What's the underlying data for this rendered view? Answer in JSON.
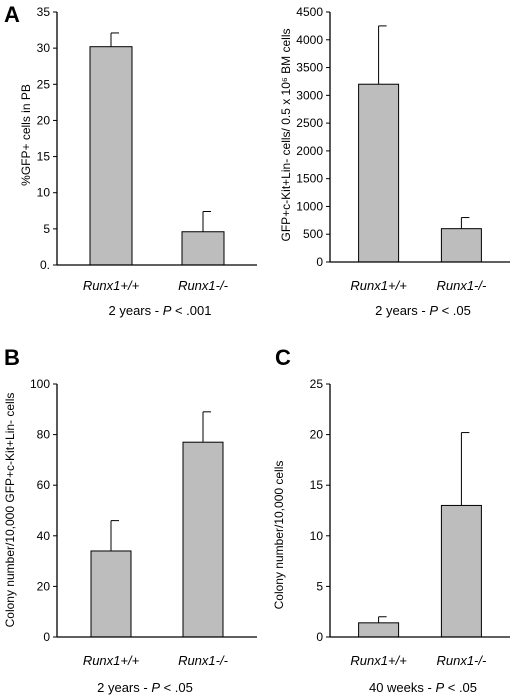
{
  "chart_data": [
    {
      "type": "bar",
      "panel_label": "A",
      "categories": [
        "Runx1+/+",
        "Runx1-/-"
      ],
      "values": [
        30.2,
        4.6
      ],
      "errors": [
        1.9,
        2.8
      ],
      "ylabel": "%GFP+ cells in PB",
      "ylim": [
        0,
        35
      ],
      "yticks": [
        "0.",
        "5",
        "10",
        "15",
        "20",
        "25",
        "30",
        "35"
      ],
      "caption": "2 years  - P < .001",
      "bar_color": "#bdbdbd"
    },
    {
      "type": "bar",
      "panel_label": "",
      "categories": [
        "Runx1+/+",
        "Runx1-/-"
      ],
      "values": [
        3200,
        600
      ],
      "errors": [
        1050,
        200
      ],
      "ylabel": "GFP+c-Kit+Lin- cells/ 0.5 x 10⁶ BM cells",
      "ylim": [
        0,
        4500
      ],
      "yticks": [
        "0",
        "500",
        "1000",
        "1500",
        "2000",
        "2500",
        "3000",
        "3500",
        "4000",
        "4500"
      ],
      "caption": "2 years  - P < .05",
      "bar_color": "#bdbdbd"
    },
    {
      "type": "bar",
      "panel_label": "B",
      "categories": [
        "Runx1+/+",
        "Runx1-/-"
      ],
      "values": [
        34,
        77
      ],
      "errors": [
        12,
        12
      ],
      "ylabel": "Colony number/10,000 GFP+c-Kit+Lin- cells",
      "ylim": [
        0,
        100
      ],
      "yticks": [
        "0",
        "20",
        "40",
        "60",
        "80",
        "100"
      ],
      "caption": "2 years  - P < .05",
      "bar_color": "#bdbdbd"
    },
    {
      "type": "bar",
      "panel_label": "C",
      "categories": [
        "Runx1+/+",
        "Runx1-/-"
      ],
      "values": [
        1.4,
        13
      ],
      "errors": [
        0.6,
        7.2
      ],
      "ylabel": "Colony number/10,000 cells",
      "ylim": [
        0,
        25
      ],
      "yticks": [
        "0",
        "5",
        "10",
        "15",
        "20",
        "25"
      ],
      "caption": "40 weeks  - P < .05",
      "bar_color": "#bdbdbd"
    }
  ]
}
